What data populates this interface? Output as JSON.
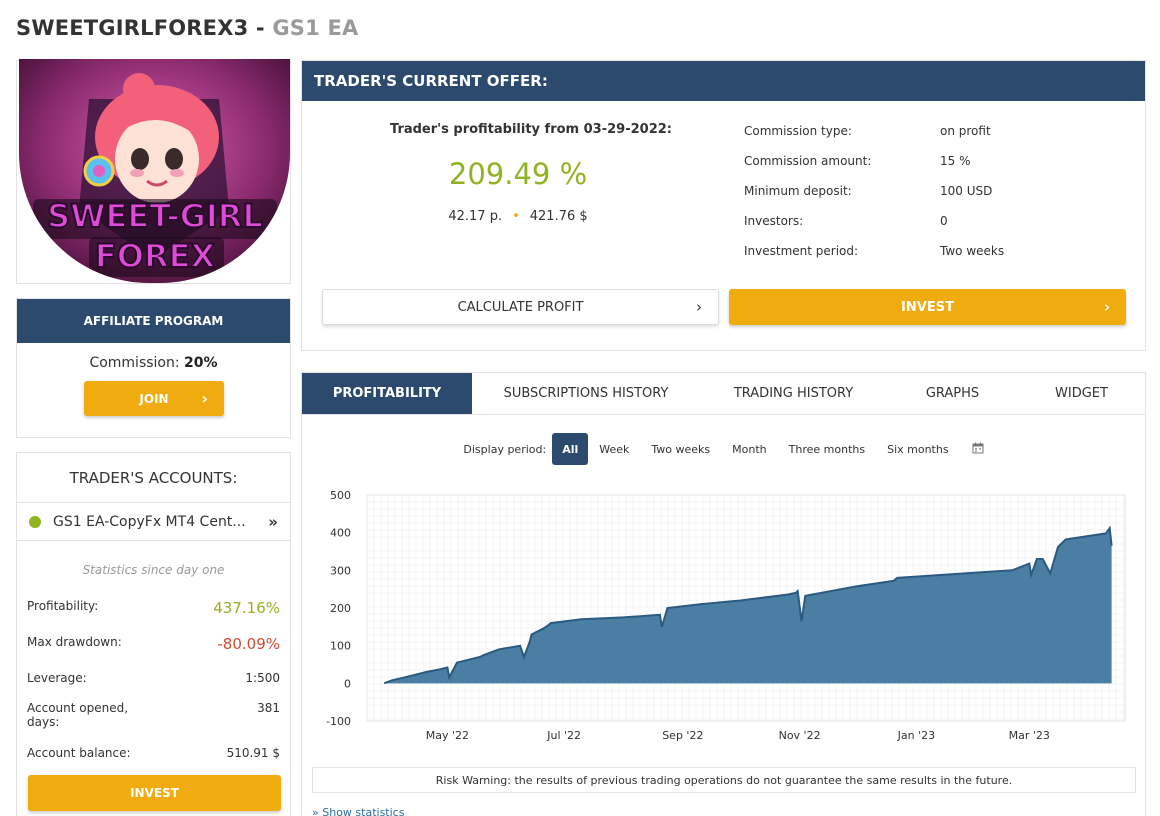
{
  "header": {
    "trader_name": "SWEETGIRLFOREX3",
    "separator": " - ",
    "strategy": "GS1 EA"
  },
  "avatar": {
    "line1": "SWEET-GIRL",
    "line2": "FOREX"
  },
  "affiliate": {
    "title": "AFFILIATE PROGRAM",
    "commission_label": "Commission:",
    "commission_value": "20%",
    "join_label": "JOIN",
    "chevron": "›"
  },
  "accounts": {
    "title": "TRADER'S ACCOUNTS:",
    "account_name": "GS1 EA-CopyFx MT4 Cent...",
    "account_arrow": "»",
    "stats_since": "Statistics since day one",
    "profitability_label": "Profitability:",
    "profitability_value": "437.16%",
    "drawdown_label": "Max drawdown:",
    "drawdown_value": "-80.09%",
    "leverage_label": "Leverage:",
    "leverage_value": "1:500",
    "opened_label_1": "Account opened,",
    "opened_label_2": "days:",
    "opened_value": "381",
    "balance_label": "Account balance:",
    "balance_value": "510.91 $",
    "invest_label": "INVEST"
  },
  "offer": {
    "title": "TRADER'S CURRENT OFFER:",
    "profit_from": "Trader's profitability from 03-29-2022:",
    "profit_value": "209.49 %",
    "points": "42.17 p.",
    "dot": "•",
    "money": "421.76 $",
    "terms": [
      {
        "label": "Commission type:",
        "value": "on profit"
      },
      {
        "label": "Commission amount:",
        "value": "15 %"
      },
      {
        "label": "Minimum deposit:",
        "value": "100 USD"
      },
      {
        "label": "Investors:",
        "value": "0"
      },
      {
        "label": "Investment period:",
        "value": "Two weeks"
      }
    ],
    "calc_label": "CALCULATE PROFIT",
    "invest_label": "INVEST",
    "chevron": "›"
  },
  "tabs": [
    "PROFITABILITY",
    "SUBSCRIPTIONS HISTORY",
    "TRADING HISTORY",
    "GRAPHS",
    "WIDGET"
  ],
  "periods": {
    "label": "Display period:",
    "items": [
      "All",
      "Week",
      "Two weeks",
      "Month",
      "Three months",
      "Six months"
    ],
    "calendar_icon": "calendar-icon"
  },
  "risk_warning": "Risk Warning: the results of previous trading operations do not guarantee the same results in the future.",
  "show_statistics": "Show statistics",
  "colors": {
    "navy": "#2c4a6e",
    "yellow": "#f0ab0e",
    "green": "#8fb321",
    "red": "#d14a2e",
    "area": "#4a7ea3",
    "line": "#2b5a80"
  },
  "chart_data": {
    "type": "area",
    "title": "",
    "xlabel": "",
    "ylabel": "",
    "ylim": [
      -100,
      500
    ],
    "yticks": [
      -100,
      0,
      100,
      200,
      300,
      400,
      500
    ],
    "xtick_labels": [
      "May '22",
      "Jul '22",
      "Sep '22",
      "Nov '22",
      "Jan '23",
      "Mar '23"
    ],
    "xtick_dates": [
      "2022-05-01",
      "2022-07-01",
      "2022-09-01",
      "2022-11-01",
      "2023-01-01",
      "2023-03-01"
    ],
    "grid": true,
    "series": [
      {
        "x": [
          "2022-03-29",
          "2022-04-02",
          "2022-04-08",
          "2022-04-12",
          "2022-04-20",
          "2022-04-28",
          "2022-05-01",
          "2022-05-02",
          "2022-05-06",
          "2022-05-10",
          "2022-05-14",
          "2022-05-18",
          "2022-05-20",
          "2022-05-28",
          "2022-06-08",
          "2022-06-10",
          "2022-06-13",
          "2022-06-14",
          "2022-06-20",
          "2022-06-23",
          "2022-06-24",
          "2022-07-10",
          "2022-08-01",
          "2022-08-20",
          "2022-08-21",
          "2022-08-24",
          "2022-09-10",
          "2022-10-01",
          "2022-10-25",
          "2022-10-30",
          "2022-10-31",
          "2022-11-02",
          "2022-11-04",
          "2022-12-01",
          "2022-12-20",
          "2022-12-22",
          "2023-02-20",
          "2023-03-01",
          "2023-03-02",
          "2023-03-05",
          "2023-03-08",
          "2023-03-12",
          "2023-03-16",
          "2023-03-20",
          "2023-04-10",
          "2023-04-12",
          "2023-04-13"
        ],
        "values": [
          0,
          8,
          15,
          20,
          30,
          38,
          42,
          16,
          55,
          60,
          65,
          70,
          75,
          90,
          100,
          70,
          110,
          130,
          145,
          155,
          160,
          170,
          175,
          182,
          150,
          200,
          210,
          220,
          235,
          240,
          245,
          165,
          232,
          258,
          272,
          280,
          300,
          318,
          288,
          330,
          330,
          292,
          362,
          382,
          398,
          412,
          365
        ]
      }
    ]
  }
}
